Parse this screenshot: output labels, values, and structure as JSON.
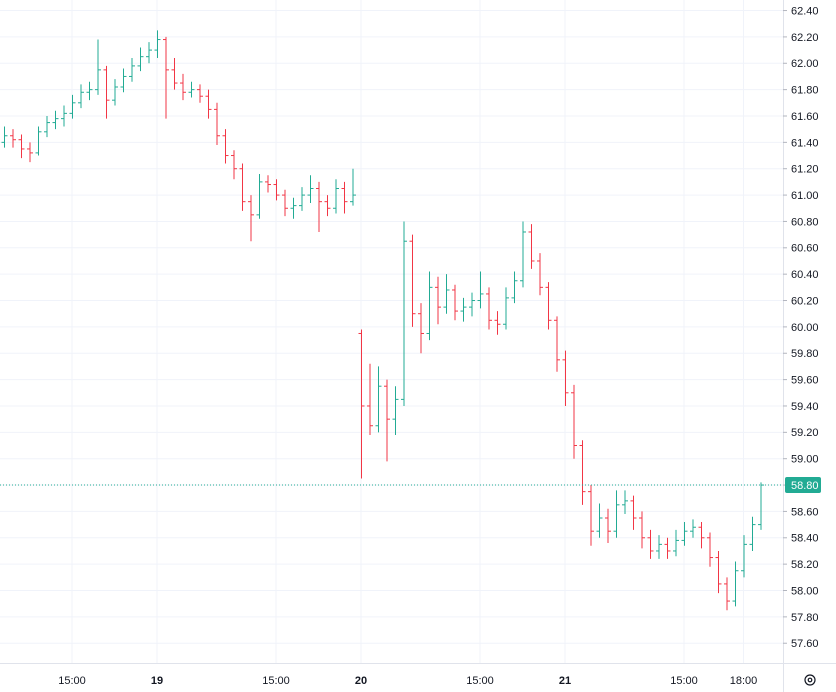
{
  "chart_data": {
    "type": "ohlc",
    "up_color": "#22ab94",
    "down_color": "#f23645",
    "grid": true,
    "categories": [
      null,
      null,
      null,
      null,
      null,
      null,
      null,
      null,
      "15:00",
      null,
      null,
      null,
      null,
      null,
      null,
      null,
      null,
      null,
      "19",
      null,
      null,
      null,
      null,
      null,
      null,
      null,
      null,
      null,
      null,
      null,
      null,
      null,
      "15:00",
      null,
      null,
      null,
      null,
      null,
      null,
      null,
      null,
      null,
      "20",
      null,
      null,
      null,
      null,
      null,
      null,
      null,
      null,
      null,
      null,
      null,
      null,
      null,
      "15:00",
      null,
      null,
      null,
      null,
      null,
      null,
      null,
      null,
      null,
      "21",
      null,
      null,
      null,
      null,
      null,
      null,
      null,
      null,
      null,
      null,
      null,
      null,
      null,
      "15:00",
      null,
      null,
      null,
      null,
      null,
      null,
      "18:00",
      null,
      null
    ],
    "open": [
      61.4,
      61.45,
      61.42,
      61.35,
      61.32,
      61.48,
      61.55,
      61.58,
      61.62,
      61.7,
      61.78,
      61.8,
      61.95,
      61.72,
      61.82,
      61.9,
      61.98,
      62.05,
      62.1,
      62.18,
      61.95,
      61.85,
      61.78,
      61.8,
      61.75,
      61.65,
      61.45,
      61.3,
      61.2,
      60.95,
      60.85,
      61.1,
      61.08,
      61.0,
      60.9,
      60.92,
      61.0,
      61.05,
      60.95,
      60.9,
      61.05,
      60.95,
      59.95,
      59.4,
      59.25,
      59.55,
      59.3,
      59.45,
      60.65,
      60.1,
      59.95,
      60.3,
      60.15,
      60.28,
      60.12,
      60.15,
      60.2,
      60.25,
      60.05,
      60.02,
      60.22,
      60.35,
      60.72,
      60.5,
      60.3,
      60.05,
      59.75,
      59.5,
      59.1,
      58.75,
      58.45,
      58.55,
      58.45,
      58.65,
      58.68,
      58.55,
      58.4,
      58.3,
      58.35,
      58.3,
      58.38,
      58.45,
      58.48,
      58.4,
      58.25,
      58.05,
      57.92,
      58.15,
      58.35,
      58.5
    ],
    "high": [
      61.52,
      61.5,
      61.46,
      61.4,
      61.52,
      61.6,
      61.64,
      61.68,
      61.76,
      61.84,
      61.86,
      62.18,
      61.98,
      61.88,
      61.96,
      62.04,
      62.12,
      62.16,
      62.25,
      62.2,
      62.04,
      61.92,
      61.86,
      61.84,
      61.8,
      61.7,
      61.5,
      61.34,
      61.24,
      61.0,
      61.16,
      61.15,
      61.12,
      61.04,
      60.98,
      61.06,
      61.15,
      61.1,
      61.0,
      61.12,
      61.1,
      61.2,
      59.98,
      59.72,
      59.7,
      59.6,
      59.55,
      60.8,
      60.7,
      60.18,
      60.42,
      60.38,
      60.4,
      60.32,
      60.22,
      60.26,
      60.42,
      60.3,
      60.12,
      60.3,
      60.42,
      60.8,
      60.78,
      60.56,
      60.34,
      60.08,
      59.82,
      59.56,
      59.14,
      58.8,
      58.66,
      58.62,
      58.76,
      58.76,
      58.72,
      58.6,
      58.46,
      58.42,
      58.4,
      58.46,
      58.52,
      58.54,
      58.52,
      58.44,
      58.3,
      58.1,
      58.22,
      58.42,
      58.56,
      58.82
    ],
    "low": [
      61.36,
      61.36,
      61.28,
      61.25,
      61.3,
      61.44,
      61.5,
      61.52,
      61.58,
      61.66,
      61.72,
      61.76,
      61.58,
      61.68,
      61.78,
      61.86,
      61.94,
      62.0,
      62.04,
      61.58,
      61.8,
      61.72,
      61.74,
      61.7,
      61.58,
      61.38,
      61.24,
      61.12,
      60.88,
      60.65,
      60.82,
      61.02,
      60.96,
      60.84,
      60.82,
      60.88,
      60.94,
      60.72,
      60.84,
      60.86,
      60.86,
      60.92,
      58.85,
      59.18,
      59.2,
      58.98,
      59.18,
      59.4,
      60.0,
      59.8,
      59.9,
      60.02,
      60.1,
      60.05,
      60.04,
      60.08,
      60.14,
      59.98,
      59.94,
      59.98,
      60.18,
      60.3,
      60.44,
      60.24,
      59.98,
      59.66,
      59.4,
      59.0,
      58.65,
      58.34,
      58.4,
      58.36,
      58.4,
      58.58,
      58.46,
      58.32,
      58.24,
      58.24,
      58.24,
      58.26,
      58.34,
      58.4,
      58.32,
      58.18,
      57.98,
      57.85,
      57.88,
      58.1,
      58.3,
      58.46
    ],
    "close": [
      61.45,
      61.42,
      61.35,
      61.32,
      61.48,
      61.55,
      61.58,
      61.62,
      61.7,
      61.78,
      61.8,
      61.95,
      61.72,
      61.82,
      61.9,
      61.98,
      62.05,
      62.1,
      62.18,
      61.95,
      61.85,
      61.78,
      61.8,
      61.75,
      61.65,
      61.45,
      61.3,
      61.2,
      60.95,
      60.85,
      61.1,
      61.08,
      61.0,
      60.9,
      60.92,
      61.0,
      61.05,
      60.95,
      60.9,
      61.05,
      60.95,
      61.0,
      59.4,
      59.25,
      59.55,
      59.3,
      59.45,
      60.65,
      60.1,
      59.95,
      60.3,
      60.15,
      60.28,
      60.12,
      60.15,
      60.2,
      60.25,
      60.05,
      60.02,
      60.22,
      60.35,
      60.72,
      60.5,
      60.3,
      60.05,
      59.75,
      59.5,
      59.1,
      58.75,
      58.45,
      58.55,
      58.45,
      58.65,
      58.68,
      58.55,
      58.4,
      58.3,
      58.35,
      58.3,
      58.38,
      58.45,
      58.48,
      58.4,
      58.25,
      58.05,
      57.92,
      58.15,
      58.35,
      58.5,
      58.8
    ],
    "ylim": [
      57.45,
      62.48
    ],
    "yticks": [
      {
        "value": 57.6,
        "label": "57.60"
      },
      {
        "value": 57.8,
        "label": "57.80"
      },
      {
        "value": 58.0,
        "label": "58.00"
      },
      {
        "value": 58.2,
        "label": "58.20"
      },
      {
        "value": 58.4,
        "label": "58.40"
      },
      {
        "value": 58.6,
        "label": "58.60"
      },
      {
        "value": 58.8,
        "label": "58.80"
      },
      {
        "value": 59.0,
        "label": "59.00"
      },
      {
        "value": 59.2,
        "label": "59.20"
      },
      {
        "value": 59.4,
        "label": "59.40"
      },
      {
        "value": 59.6,
        "label": "59.60"
      },
      {
        "value": 59.8,
        "label": "59.80"
      },
      {
        "value": 60.0,
        "label": "60.00"
      },
      {
        "value": 60.2,
        "label": "60.20"
      },
      {
        "value": 60.4,
        "label": "60.40"
      },
      {
        "value": 60.6,
        "label": "60.60"
      },
      {
        "value": 60.8,
        "label": "60.80"
      },
      {
        "value": 61.0,
        "label": "61.00"
      },
      {
        "value": 61.2,
        "label": "61.20"
      },
      {
        "value": 61.4,
        "label": "61.40"
      },
      {
        "value": 61.6,
        "label": "61.60"
      },
      {
        "value": 61.8,
        "label": "61.80"
      },
      {
        "value": 62.0,
        "label": "62.00"
      },
      {
        "value": 62.2,
        "label": "62.20"
      },
      {
        "value": 62.4,
        "label": "62.40"
      }
    ],
    "last_price": {
      "value": 58.8,
      "label": "58.80"
    }
  }
}
